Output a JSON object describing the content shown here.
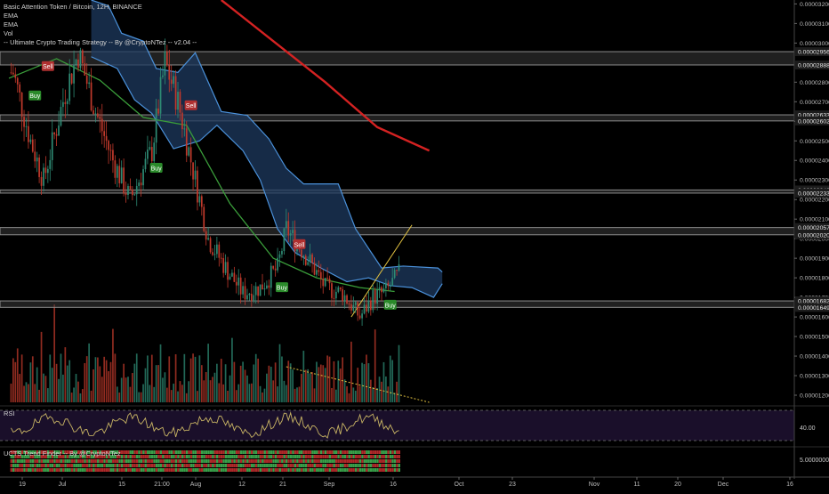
{
  "legend": {
    "symbol": "Basic Attention Token / Bitcoin, 12H, BINANCE",
    "ema1": "EMA",
    "ema2": "EMA",
    "vol": "Vol",
    "strategy": "-- Ultimate Crypto Trading Strategy -- By @CryptoNTez -- v2.04 --"
  },
  "colors": {
    "background": "#000000",
    "bull": "#2e8b74",
    "bear": "#c0392b",
    "ema_fast": "#3a9d3a",
    "ema_slow": "#d42222",
    "cloud_fill": "#1e3a5f",
    "cloud_edge": "#4a90d9",
    "level_band": "#8c8c8c",
    "rsi_fill": "#1a0f2a",
    "rsi_line": "#c8b464",
    "trendline_up": "#e0c040",
    "buy_label": "#2a8a2a",
    "sell_label": "#b03030"
  },
  "x_axis_ticks": [
    "19",
    "Jul",
    "15",
    "21:00",
    "Aug",
    "12",
    "21",
    "Sep",
    "16",
    "Oct",
    "23",
    "Nov",
    "11",
    "20",
    "Dec",
    "16"
  ],
  "price_axis_ticks": [
    "0.00003200",
    "0.00003100",
    "0.00003000",
    "0.00002800",
    "0.00002700",
    "0.00002600",
    "0.00002500",
    "0.00002400",
    "0.00002300",
    "0.00002200",
    "0.00002100",
    "0.00002000",
    "0.00001900",
    "0.00001800",
    "0.00001700",
    "0.00001600",
    "0.00001500",
    "0.00001400",
    "0.00001300",
    "0.00001200"
  ],
  "level_labels": [
    "0.00002956",
    "0.00002888",
    "0.00002633",
    "0.00002602",
    "0.00002249",
    "0.00002233",
    "0.00002057",
    "0.00002020",
    "0.00001682",
    "0.00001649"
  ],
  "signals": [
    "Sell",
    "Buy",
    "Sell",
    "Buy",
    "Buy",
    "Sell",
    "Buy"
  ],
  "rsi": {
    "label": "RSI",
    "axis_value": "40.00"
  },
  "trend_finder": {
    "label": "UCTS Trend Finder -- By @CryptoNTez",
    "axis_value": "5.0000000"
  },
  "chart_data": {
    "type": "candlestick",
    "symbol": "Basic Attention Token / Bitcoin",
    "interval": "12H",
    "exchange": "BINANCE",
    "x_range": [
      "2019-06-19",
      "2019-12-16"
    ],
    "y_range": [
      1.15e-05,
      3.22e-05
    ],
    "horizontal_levels": [
      [
        2.956e-05,
        2.888e-05
      ],
      [
        2.633e-05,
        2.602e-05
      ],
      [
        2.249e-05,
        2.233e-05
      ],
      [
        2.057e-05,
        2.02e-05
      ],
      [
        1.682e-05,
        1.649e-05
      ]
    ],
    "close_path": [
      [
        "2019-06-20",
        2.85e-05
      ],
      [
        "2019-06-24",
        2.5e-05
      ],
      [
        "2019-06-27",
        2.3e-05
      ],
      [
        "2019-07-02",
        2.75e-05
      ],
      [
        "2019-07-05",
        2.95e-05
      ],
      [
        "2019-07-09",
        2.65e-05
      ],
      [
        "2019-07-13",
        2.4e-05
      ],
      [
        "2019-07-17",
        2.2e-05
      ],
      [
        "2019-07-22",
        2.45e-05
      ],
      [
        "2019-07-25",
        2.9e-05
      ],
      [
        "2019-07-28",
        2.7e-05
      ],
      [
        "2019-08-01",
        2.3e-05
      ],
      [
        "2019-08-04",
        2e-05
      ],
      [
        "2019-08-08",
        1.85e-05
      ],
      [
        "2019-08-12",
        1.72e-05
      ],
      [
        "2019-08-16",
        1.75e-05
      ],
      [
        "2019-08-20",
        1.85e-05
      ],
      [
        "2019-08-22",
        2.05e-05
      ],
      [
        "2019-08-27",
        1.9e-05
      ],
      [
        "2019-08-31",
        1.75e-05
      ],
      [
        "2019-09-04",
        1.72e-05
      ],
      [
        "2019-09-08",
        1.6e-05
      ],
      [
        "2019-09-11",
        1.7e-05
      ],
      [
        "2019-09-14",
        1.73e-05
      ],
      [
        "2019-09-17",
        1.82e-05
      ]
    ],
    "signals": [
      {
        "label": "Sell",
        "x": "2019-06-28",
        "y": 2.88e-05
      },
      {
        "label": "Buy",
        "x": "2019-06-25",
        "y": 2.73e-05
      },
      {
        "label": "Sell",
        "x": "2019-07-31",
        "y": 2.68e-05
      },
      {
        "label": "Buy",
        "x": "2019-07-23",
        "y": 2.36e-05
      },
      {
        "label": "Buy",
        "x": "2019-08-21",
        "y": 1.75e-05
      },
      {
        "label": "Sell",
        "x": "2019-08-25",
        "y": 1.97e-05
      },
      {
        "label": "Buy",
        "x": "2019-09-15",
        "y": 1.66e-05
      }
    ],
    "ema_fast": [
      [
        "2019-06-19",
        2.82e-05
      ],
      [
        "2019-06-30",
        2.92e-05
      ],
      [
        "2019-07-10",
        2.81e-05
      ],
      [
        "2019-07-20",
        2.62e-05
      ],
      [
        "2019-07-30",
        2.58e-05
      ],
      [
        "2019-08-09",
        2.18e-05
      ],
      [
        "2019-08-19",
        1.9e-05
      ],
      [
        "2019-08-29",
        1.8e-05
      ],
      [
        "2019-09-08",
        1.75e-05
      ],
      [
        "2019-09-16",
        1.73e-05
      ]
    ],
    "ema_slow": [
      [
        "2019-08-07",
        3.22e-05
      ],
      [
        "2019-08-19",
        3.01e-05
      ],
      [
        "2019-08-31",
        2.8e-05
      ],
      [
        "2019-09-12",
        2.57e-05
      ],
      [
        "2019-09-24",
        2.45e-05
      ]
    ],
    "cloud_upper": [
      [
        "2019-07-08",
        3.22e-05
      ],
      [
        "2019-07-12",
        3.19e-05
      ],
      [
        "2019-07-15",
        3.05e-05
      ],
      [
        "2019-07-20",
        3.01e-05
      ],
      [
        "2019-07-23",
        2.87e-05
      ],
      [
        "2019-07-28",
        2.85e-05
      ],
      [
        "2019-08-01",
        2.95e-05
      ],
      [
        "2019-08-07",
        2.65e-05
      ],
      [
        "2019-08-13",
        2.63e-05
      ],
      [
        "2019-08-18",
        2.51e-05
      ],
      [
        "2019-08-22",
        2.36e-05
      ],
      [
        "2019-08-26",
        2.28e-05
      ],
      [
        "2019-09-03",
        2.28e-05
      ],
      [
        "2019-09-07",
        2.05e-05
      ],
      [
        "2019-09-13",
        1.85e-05
      ],
      [
        "2019-09-18",
        1.86e-05
      ],
      [
        "2019-09-26",
        1.85e-05
      ],
      [
        "2019-09-27",
        1.83e-05
      ]
    ],
    "cloud_lower": [
      [
        "2019-07-08",
        2.93e-05
      ],
      [
        "2019-07-14",
        2.87e-05
      ],
      [
        "2019-07-18",
        2.71e-05
      ],
      [
        "2019-07-22",
        2.64e-05
      ],
      [
        "2019-07-27",
        2.46e-05
      ],
      [
        "2019-08-02",
        2.5e-05
      ],
      [
        "2019-08-06",
        2.58e-05
      ],
      [
        "2019-08-12",
        2.45e-05
      ],
      [
        "2019-08-16",
        2.3e-05
      ],
      [
        "2019-08-20",
        2.05e-05
      ],
      [
        "2019-08-24",
        1.93e-05
      ],
      [
        "2019-08-30",
        1.85e-05
      ],
      [
        "2019-09-05",
        1.78e-05
      ],
      [
        "2019-09-10",
        1.8e-05
      ],
      [
        "2019-09-15",
        1.76e-05
      ],
      [
        "2019-09-20",
        1.75e-05
      ],
      [
        "2019-09-25",
        1.7e-05
      ],
      [
        "2019-09-27",
        1.77e-05
      ]
    ],
    "trendline_up": [
      [
        "2019-09-06",
        1.6e-05
      ],
      [
        "2019-09-20",
        2.07e-05
      ]
    ],
    "volume_trendline": [
      [
        "2019-08-22",
        1.0
      ],
      [
        "2019-09-24",
        0.16
      ]
    ],
    "rsi_range": [
      35,
      65
    ]
  }
}
